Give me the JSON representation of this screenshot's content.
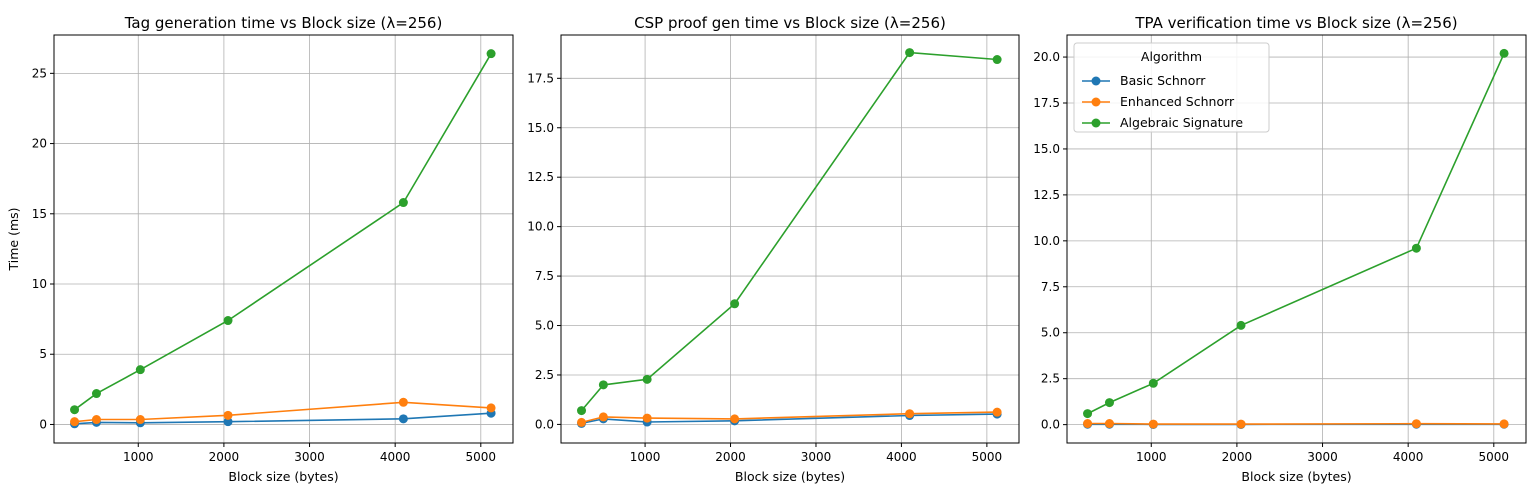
{
  "colors": {
    "basic_schnorr": "#1f77b4",
    "enhanced_schnorr": "#ff7f0e",
    "algebraic_signature": "#2ca02c"
  },
  "legend": {
    "title": "Algorithm",
    "placement": "upper-left of third chart",
    "entries": [
      "Basic Schnorr",
      "Enhanced Schnorr",
      "Algebraic Signature"
    ]
  },
  "chart_data": [
    {
      "type": "line",
      "title": "Tag generation time vs Block size (λ=256)",
      "xlabel": "Block size (bytes)",
      "ylabel": "Time (ms)",
      "xlim": [
        16,
        5376
      ],
      "ylim": [
        -1.32,
        27.73
      ],
      "xticks": [
        1000,
        2000,
        3000,
        4000,
        5000
      ],
      "xtick_labels": [
        "1000",
        "2000",
        "3000",
        "4000",
        "5000"
      ],
      "yticks": [
        0,
        5,
        10,
        15,
        20,
        25
      ],
      "ytick_labels": [
        "0",
        "5",
        "10",
        "15",
        "20",
        "25"
      ],
      "grid": true,
      "x": [
        256,
        512,
        1024,
        2048,
        4096,
        5120
      ],
      "series": [
        {
          "name": "Basic Schnorr",
          "color_key": "basic_schnorr",
          "values": [
            0.05,
            0.15,
            0.12,
            0.2,
            0.4,
            0.8
          ]
        },
        {
          "name": "Enhanced Schnorr",
          "color_key": "enhanced_schnorr",
          "values": [
            0.2,
            0.35,
            0.35,
            0.65,
            1.58,
            1.18
          ]
        },
        {
          "name": "Algebraic Signature",
          "color_key": "algebraic_signature",
          "values": [
            1.05,
            2.2,
            3.9,
            7.4,
            15.8,
            26.4
          ]
        }
      ]
    },
    {
      "type": "line",
      "title": "CSP proof gen time vs Block size (λ=256)",
      "xlabel": "Block size (bytes)",
      "ylabel": "",
      "xlim": [
        16,
        5376
      ],
      "ylim": [
        -0.94,
        19.69
      ],
      "xticks": [
        1000,
        2000,
        3000,
        4000,
        5000
      ],
      "xtick_labels": [
        "1000",
        "2000",
        "3000",
        "4000",
        "5000"
      ],
      "yticks": [
        0,
        2.5,
        5,
        7.5,
        10,
        12.5,
        15,
        17.5
      ],
      "ytick_labels": [
        "0.0",
        "2.5",
        "5.0",
        "7.5",
        "10.0",
        "12.5",
        "15.0",
        "17.5"
      ],
      "grid": true,
      "x": [
        256,
        512,
        1024,
        2048,
        4096,
        5120
      ],
      "series": [
        {
          "name": "Basic Schnorr",
          "color_key": "basic_schnorr",
          "values": [
            0.05,
            0.28,
            0.12,
            0.18,
            0.45,
            0.52
          ]
        },
        {
          "name": "Enhanced Schnorr",
          "color_key": "enhanced_schnorr",
          "values": [
            0.1,
            0.38,
            0.32,
            0.28,
            0.54,
            0.62
          ]
        },
        {
          "name": "Algebraic Signature",
          "color_key": "algebraic_signature",
          "values": [
            0.7,
            2.0,
            2.28,
            6.1,
            18.8,
            18.45
          ]
        }
      ]
    },
    {
      "type": "line",
      "title": "TPA verification time vs Block size (λ=256)",
      "xlabel": "Block size (bytes)",
      "ylabel": "",
      "xlim": [
        16,
        5376
      ],
      "ylim": [
        -1.0,
        21.2
      ],
      "xticks": [
        1000,
        2000,
        3000,
        4000,
        5000
      ],
      "xtick_labels": [
        "1000",
        "2000",
        "3000",
        "4000",
        "5000"
      ],
      "yticks": [
        0,
        2.5,
        5,
        7.5,
        10,
        12.5,
        15,
        17.5,
        20
      ],
      "ytick_labels": [
        "0.0",
        "2.5",
        "5.0",
        "7.5",
        "10.0",
        "12.5",
        "15.0",
        "17.5",
        "20.0"
      ],
      "grid": true,
      "x": [
        256,
        512,
        1024,
        2048,
        4096,
        5120
      ],
      "series": [
        {
          "name": "Basic Schnorr",
          "color_key": "basic_schnorr",
          "values": [
            0.02,
            0.02,
            0.01,
            0.01,
            0.02,
            0.02
          ]
        },
        {
          "name": "Enhanced Schnorr",
          "color_key": "enhanced_schnorr",
          "values": [
            0.06,
            0.06,
            0.03,
            0.03,
            0.05,
            0.04
          ]
        },
        {
          "name": "Algebraic Signature",
          "color_key": "algebraic_signature",
          "values": [
            0.6,
            1.2,
            2.25,
            5.4,
            9.6,
            20.2
          ]
        }
      ]
    }
  ]
}
